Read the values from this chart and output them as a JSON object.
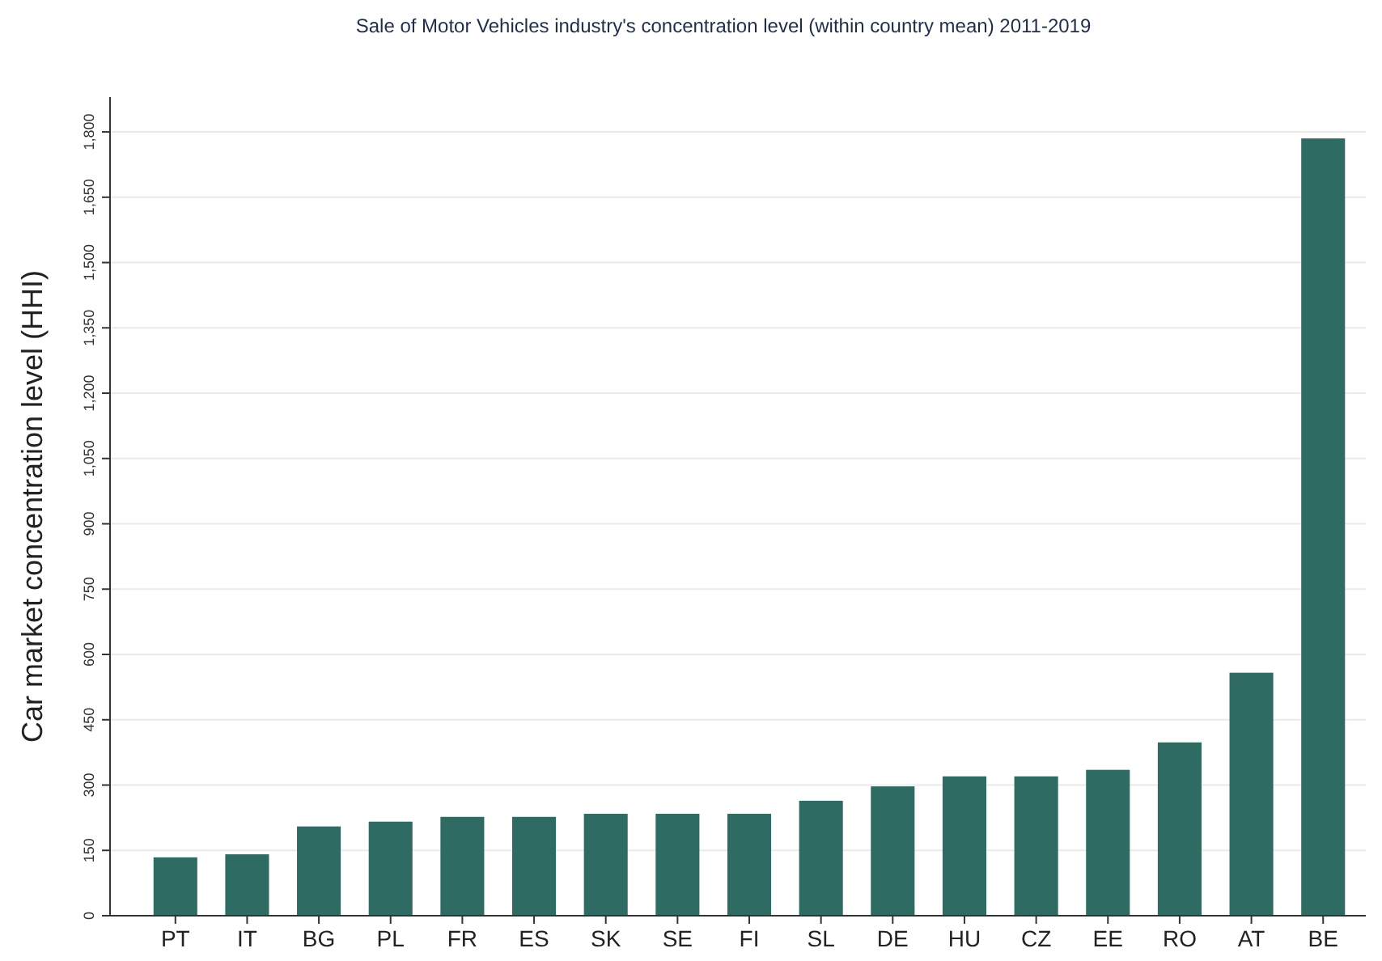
{
  "chart_data": {
    "type": "bar",
    "title": "Sale of Motor Vehicles industry's concentration level (within country mean) 2011-2019",
    "ylabel": "Car market concentration level (HHI)",
    "categories": [
      "PT",
      "IT",
      "BG",
      "PL",
      "FR",
      "ES",
      "SK",
      "SE",
      "FI",
      "SL",
      "DE",
      "HU",
      "CZ",
      "EE",
      "RO",
      "AT",
      "BE"
    ],
    "values": [
      134,
      141,
      205,
      216,
      227,
      227,
      234,
      234,
      234,
      264,
      297,
      320,
      320,
      335,
      398,
      558,
      1785
    ],
    "color": "#2e6b62",
    "ylim": [
      0,
      1880
    ],
    "yticks": [
      0,
      150,
      300,
      450,
      600,
      750,
      900,
      {
        "value": 1050,
        "label": "1,050"
      },
      {
        "value": 1200,
        "label": "1,200"
      },
      {
        "value": 1350,
        "label": "1,350"
      },
      {
        "value": 1500,
        "label": "1,500"
      },
      {
        "value": 1650,
        "label": "1,650"
      },
      {
        "value": 1800,
        "label": "1,800"
      }
    ],
    "grid": "y"
  }
}
